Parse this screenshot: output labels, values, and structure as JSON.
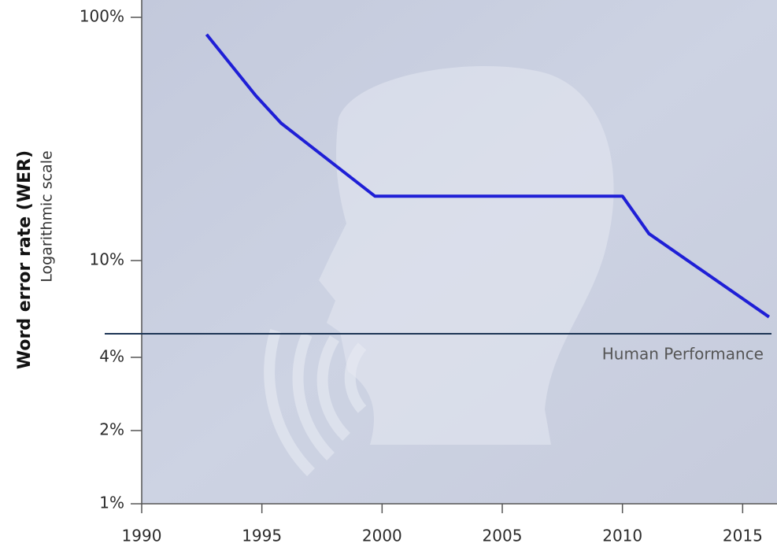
{
  "chart_data": {
    "type": "line",
    "y_label": "Word error rate (WER)",
    "y_sublabel": "Logarithmic scale",
    "x": [
      1992.7,
      1994.75,
      1995.8,
      1999.7,
      2010.0,
      2011.1,
      2016.1
    ],
    "values": [
      85,
      47.6,
      36.7,
      18.4,
      18.4,
      12.9,
      5.86
    ],
    "color": "#1f1fd6",
    "log_scale": true,
    "xlim": [
      1990,
      2016.2
    ],
    "xticks": [
      1990,
      1995,
      2000,
      2005,
      2010,
      2015
    ],
    "ylim": [
      1,
      100
    ],
    "yticks": [
      {
        "value": 1,
        "label": "1%"
      },
      {
        "value": 2,
        "label": "2%"
      },
      {
        "value": 4,
        "label": "4%"
      },
      {
        "value": 10,
        "label": "10%"
      },
      {
        "value": 100,
        "label": "100%"
      }
    ],
    "reference_line": {
      "label": "Human Performance",
      "value": 5,
      "color": "#1d3555"
    }
  }
}
